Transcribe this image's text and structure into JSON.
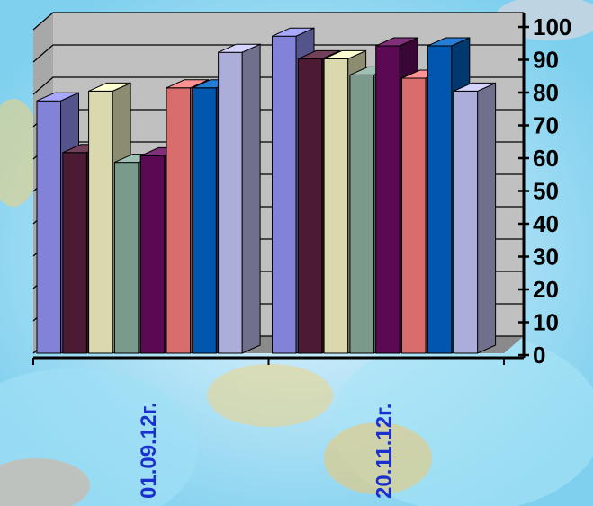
{
  "chart_data": {
    "type": "bar",
    "categories": [
      "01.09.12г.",
      "20.11.12г."
    ],
    "series": [
      {
        "color": "#9999ff",
        "values": [
          78,
          98
        ]
      },
      {
        "color": "#5a1e3c",
        "values": [
          62,
          91
        ]
      },
      {
        "color": "#ffffcc",
        "values": [
          81,
          91
        ]
      },
      {
        "color": "#8fb5a5",
        "values": [
          59,
          86
        ]
      },
      {
        "color": "#6a0a60",
        "values": [
          61,
          95
        ]
      },
      {
        "color": "#ff8080",
        "values": [
          82,
          85
        ]
      },
      {
        "color": "#0066cc",
        "values": [
          82,
          95
        ]
      },
      {
        "color": "#ccccff",
        "values": [
          93,
          81
        ]
      }
    ],
    "y_ticks": [
      "0",
      "10",
      "20",
      "30",
      "40",
      "50",
      "60",
      "70",
      "80",
      "90",
      "100"
    ],
    "ylim": [
      0,
      100
    ],
    "grid": true
  }
}
